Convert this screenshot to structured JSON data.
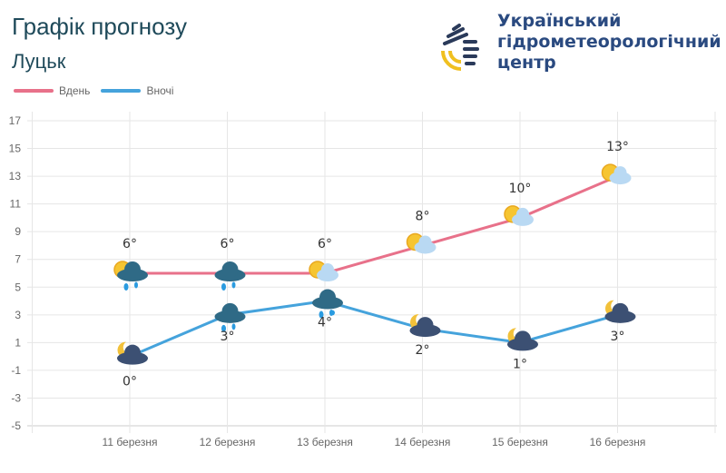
{
  "header": {
    "title": "Графік прогнозу",
    "city": "Луцьк"
  },
  "organization": {
    "line1": "Український",
    "line2": "гідрометеорологічний",
    "line3": "центр"
  },
  "chart_data": {
    "type": "line",
    "categories": [
      "11 березня",
      "12 березня",
      "13 березня",
      "14 березня",
      "15 березня",
      "16 березня"
    ],
    "series": [
      {
        "name": "Вдень",
        "color": "#e8718a",
        "values": [
          6,
          6,
          6,
          8,
          10,
          13
        ],
        "labels": [
          "6°",
          "6°",
          "6°",
          "8°",
          "10°",
          "13°"
        ],
        "icons": [
          "sun-cloud-rain",
          "cloud-rain",
          "sun-cloud",
          "sun-cloud",
          "sun-cloud",
          "sun-cloud"
        ]
      },
      {
        "name": "Вночі",
        "color": "#45a3dc",
        "values": [
          0,
          3,
          4,
          2,
          1,
          3
        ],
        "labels": [
          "0°",
          "3°",
          "4°",
          "2°",
          "1°",
          "3°"
        ],
        "icons": [
          "moon-cloud",
          "cloud-rain",
          "cloud-rain-snow",
          "moon-cloud",
          "moon-cloud",
          "moon-cloud"
        ]
      }
    ],
    "ylim": [
      -5,
      17
    ],
    "yticks": [
      "17",
      "15",
      "13",
      "11",
      "9",
      "7",
      "5",
      "3",
      "1",
      "-1",
      "-3",
      "-5"
    ],
    "grid": true,
    "legend": "top-left"
  }
}
